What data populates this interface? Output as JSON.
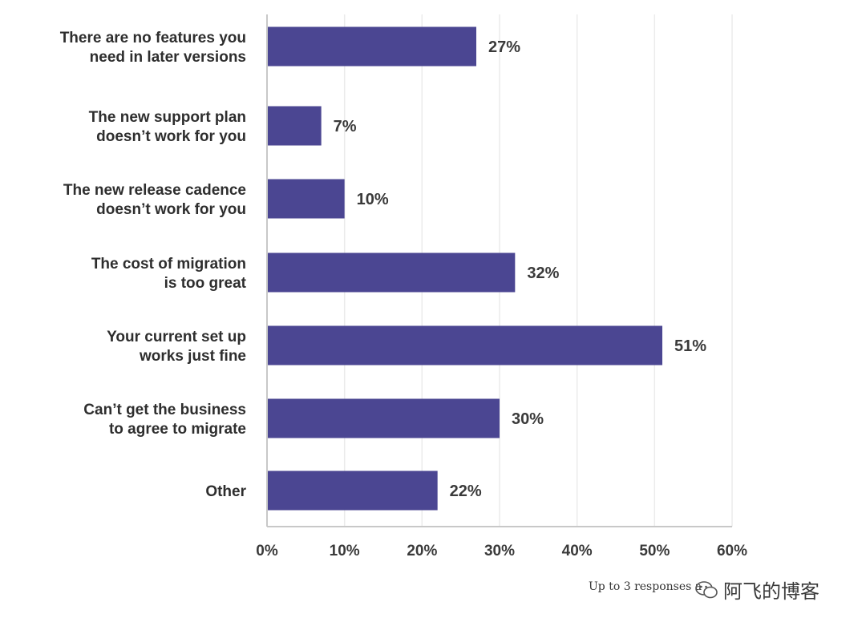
{
  "chart_data": {
    "type": "bar",
    "orientation": "horizontal",
    "categories": [
      [
        "There are no features you",
        "need in later versions"
      ],
      [
        "The new support plan",
        "doesn’t work for you"
      ],
      [
        "The new release cadence",
        "doesn’t work for you"
      ],
      [
        "The cost of migration",
        "is too great"
      ],
      [
        "Your current set up",
        "works just fine"
      ],
      [
        "Can’t get the business",
        "to agree to migrate"
      ],
      [
        "Other"
      ]
    ],
    "values": [
      27,
      7,
      10,
      32,
      51,
      30,
      22
    ],
    "value_labels": [
      "27%",
      "7%",
      "10%",
      "32%",
      "51%",
      "30%",
      "22%"
    ],
    "xlim": [
      0,
      60
    ],
    "x_ticks": [
      "0%",
      "10%",
      "20%",
      "30%",
      "40%",
      "50%",
      "60%"
    ],
    "grid": "vertical",
    "bar_color": "#4b4692",
    "grid_color": "#ebebeb",
    "axis_color": "#c8c8c8"
  },
  "footnote": "Up to 3 responses a",
  "watermark": "阿飞的博客",
  "watermark_icon": "wechat-icon"
}
